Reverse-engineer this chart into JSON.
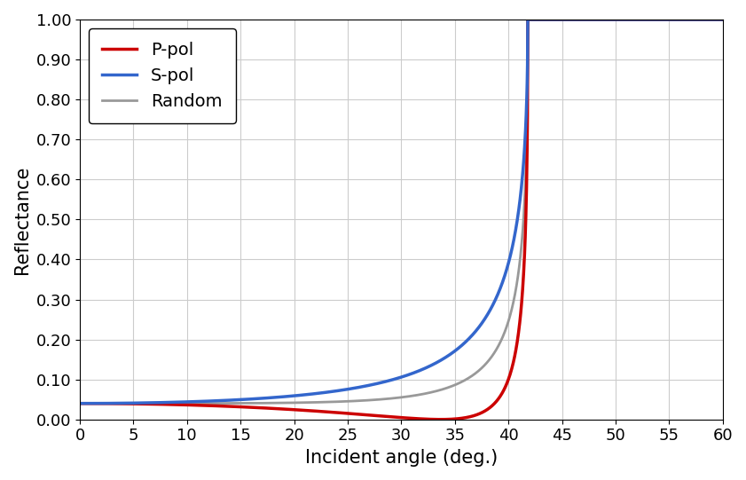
{
  "title": "",
  "xlabel": "Incident angle (deg.)",
  "ylabel": "Reflectance",
  "xlim": [
    0,
    60
  ],
  "ylim": [
    0,
    1.0
  ],
  "xticks": [
    0,
    5,
    10,
    15,
    20,
    25,
    30,
    35,
    40,
    45,
    50,
    55,
    60
  ],
  "yticks": [
    0.0,
    0.1,
    0.2,
    0.3,
    0.4,
    0.5,
    0.6,
    0.7,
    0.8,
    0.9,
    1.0
  ],
  "n1": 1.5,
  "n2": 1.0,
  "legend": [
    {
      "label": "P-pol",
      "color": "#cc0000",
      "lw": 2.5
    },
    {
      "label": "S-pol",
      "color": "#3366cc",
      "lw": 2.5
    },
    {
      "label": "Random",
      "color": "#999999",
      "lw": 2.0
    }
  ],
  "grid_color": "#cccccc",
  "bg_color": "#ffffff",
  "xlabel_fontsize": 15,
  "ylabel_fontsize": 15,
  "tick_fontsize": 13,
  "legend_fontsize": 14
}
